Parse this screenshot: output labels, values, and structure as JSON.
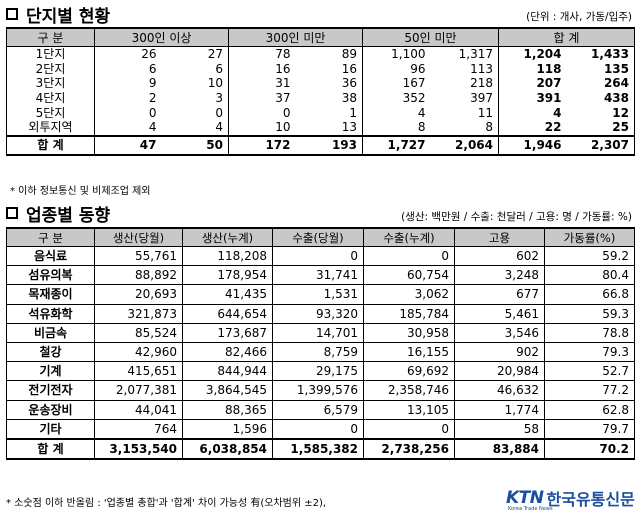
{
  "section1": {
    "title": "단지별 현황",
    "unit": "(단위 : 개사, 가동/입주)",
    "headers": [
      "구  분",
      "300인 이상",
      "300인 미만",
      "50인 미만",
      "합  계"
    ],
    "rows": [
      {
        "label": "1단지",
        "v": [
          "26",
          "27",
          "78",
          "89",
          "1,100",
          "1,317",
          "1,204",
          "1,433"
        ]
      },
      {
        "label": "2단지",
        "v": [
          "6",
          "6",
          "16",
          "16",
          "96",
          "113",
          "118",
          "135"
        ]
      },
      {
        "label": "3단지",
        "v": [
          "9",
          "10",
          "31",
          "36",
          "167",
          "218",
          "207",
          "264"
        ]
      },
      {
        "label": "4단지",
        "v": [
          "2",
          "3",
          "37",
          "38",
          "352",
          "397",
          "391",
          "438"
        ]
      },
      {
        "label": "5단지",
        "v": [
          "0",
          "0",
          "0",
          "1",
          "4",
          "11",
          "4",
          "12"
        ]
      },
      {
        "label": "외투지역",
        "v": [
          "4",
          "4",
          "10",
          "13",
          "8",
          "8",
          "22",
          "25"
        ]
      }
    ],
    "total": {
      "label": "합  계",
      "v": [
        "47",
        "50",
        "172",
        "193",
        "1,727",
        "2,064",
        "1,946",
        "2,307"
      ]
    },
    "note": "* 이하 정보통신 및 비제조업 제외"
  },
  "section2": {
    "title": "업종별 동향",
    "unit": "(생산: 백만원 / 수출: 천달러 / 고용: 명 / 가동률: %)",
    "headers": [
      "구  분",
      "생산(당월)",
      "생산(누계)",
      "수출(당월)",
      "수출(누계)",
      "고용",
      "가동률(%)"
    ],
    "rows": [
      {
        "label": "음식료",
        "v": [
          "55,761",
          "118,208",
          "0",
          "0",
          "602",
          "59.2"
        ]
      },
      {
        "label": "섬유의복",
        "v": [
          "88,892",
          "178,954",
          "31,741",
          "60,754",
          "3,248",
          "80.4"
        ]
      },
      {
        "label": "목재종이",
        "v": [
          "20,693",
          "41,435",
          "1,531",
          "3,062",
          "677",
          "66.8"
        ]
      },
      {
        "label": "석유화학",
        "v": [
          "321,873",
          "644,654",
          "93,320",
          "185,784",
          "5,461",
          "59.3"
        ]
      },
      {
        "label": "비금속",
        "v": [
          "85,524",
          "173,687",
          "14,701",
          "30,958",
          "3,546",
          "78.8"
        ]
      },
      {
        "label": "철강",
        "v": [
          "42,960",
          "82,466",
          "8,759",
          "16,155",
          "902",
          "79.3"
        ]
      },
      {
        "label": "기계",
        "v": [
          "415,651",
          "844,944",
          "29,175",
          "69,692",
          "20,984",
          "52.7"
        ]
      },
      {
        "label": "전기전자",
        "v": [
          "2,077,381",
          "3,864,545",
          "1,399,576",
          "2,358,746",
          "46,632",
          "77.2"
        ]
      },
      {
        "label": "운송장비",
        "v": [
          "44,041",
          "88,365",
          "6,579",
          "13,105",
          "1,774",
          "62.8"
        ]
      },
      {
        "label": "기타",
        "v": [
          "764",
          "1,596",
          "0",
          "0",
          "58",
          "79.7"
        ]
      }
    ],
    "total": {
      "label": "합  계",
      "v": [
        "3,153,540",
        "6,038,854",
        "1,585,382",
        "2,738,256",
        "83,884",
        "70.2"
      ]
    },
    "note": "* 소숫점 이하 반올림 : '업종별 총합'과 '합계' 차이 가능성 有(오차범위 ±2),"
  },
  "logo": {
    "brand": "KTN",
    "name": "한국유통신문",
    "tag": "Korea Trade News"
  },
  "colors": {
    "header_bg": "#c8c8c8",
    "logo": "#1a4fa0"
  }
}
